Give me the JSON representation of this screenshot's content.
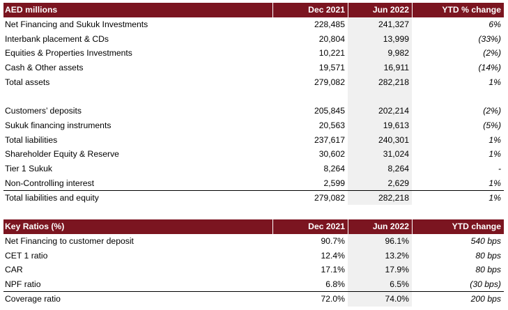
{
  "balance_sheet": {
    "header": {
      "label": "AED millions",
      "dec": "Dec 2021",
      "jun": "Jun 2022",
      "ytd": "YTD % change"
    },
    "rows": [
      {
        "label": "Net Financing and Sukuk Investments",
        "dec": "228,485",
        "jun": "241,327",
        "ytd": "6%"
      },
      {
        "label": "Interbank placement & CDs",
        "dec": "20,804",
        "jun": "13,999",
        "ytd": "(33%)"
      },
      {
        "label": "Equities & Properties Investments",
        "dec": "10,221",
        "jun": "9,982",
        "ytd": "(2%)"
      },
      {
        "label": "Cash & Other assets",
        "dec": "19,571",
        "jun": "16,911",
        "ytd": "(14%)"
      },
      {
        "label": "Total assets",
        "dec": "279,082",
        "jun": "282,218",
        "ytd": "1%"
      },
      {
        "label": "",
        "dec": "",
        "jun": "",
        "ytd": ""
      },
      {
        "label": "Customers’ deposits",
        "dec": "205,845",
        "jun": "202,214",
        "ytd": "(2%)"
      },
      {
        "label": "Sukuk financing instruments",
        "dec": "20,563",
        "jun": "19,613",
        "ytd": "(5%)"
      },
      {
        "label": "Total liabilities",
        "dec": "237,617",
        "jun": "240,301",
        "ytd": "1%"
      },
      {
        "label": "Shareholder Equity & Reserve",
        "dec": "30,602",
        "jun": "31,024",
        "ytd": "1%"
      },
      {
        "label": "Tier 1 Sukuk",
        "dec": "8,264",
        "jun": "8,264",
        "ytd": "-"
      },
      {
        "label": "Non-Controlling interest",
        "dec": "2,599",
        "jun": "2,629",
        "ytd": "1%"
      },
      {
        "label": "Total liabilities and equity",
        "dec": "279,082",
        "jun": "282,218",
        "ytd": "1%"
      }
    ]
  },
  "key_ratios": {
    "header": {
      "label": "Key Ratios (%)",
      "dec": "Dec 2021",
      "jun": "Jun 2022",
      "ytd": "YTD change"
    },
    "rows": [
      {
        "label": "Net Financing to customer deposit",
        "dec": "90.7%",
        "jun": "96.1%",
        "ytd": "540 bps"
      },
      {
        "label": "CET 1 ratio",
        "dec": "12.4%",
        "jun": "13.2%",
        "ytd": "80 bps"
      },
      {
        "label": "CAR",
        "dec": "17.1%",
        "jun": "17.9%",
        "ytd": "80 bps"
      },
      {
        "label": "NPF ratio",
        "dec": "6.8%",
        "jun": "6.5%",
        "ytd": "(30 bps)"
      },
      {
        "label": "Coverage ratio",
        "dec": "72.0%",
        "jun": "74.0%",
        "ytd": "200 bps"
      }
    ]
  },
  "colors": {
    "header_bg": "#7b1520",
    "header_text": "#ffffff",
    "shade": "#f0f0f0"
  }
}
